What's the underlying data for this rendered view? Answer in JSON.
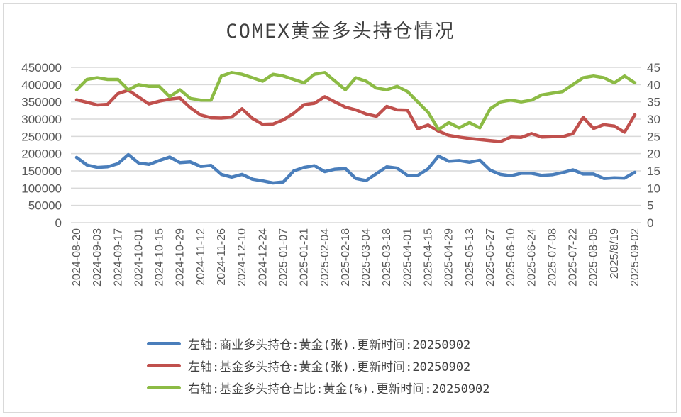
{
  "chart_data": {
    "type": "line",
    "title": "COMEX黄金多头持仓情况",
    "xlabel": "",
    "ylabel_left": "",
    "ylabel_right": "",
    "ylim_left": [
      0,
      450000
    ],
    "ylim_right": [
      0,
      45
    ],
    "yticks_left": [
      "0",
      "50000",
      "100000",
      "150000",
      "200000",
      "250000",
      "300000",
      "350000",
      "400000",
      "450000"
    ],
    "yticks_right": [
      "0",
      "5",
      "10",
      "15",
      "20",
      "25",
      "30",
      "35",
      "40",
      "45"
    ],
    "xtick_labels": [
      "2024-08-20",
      "2024-09-03",
      "2024-09-17",
      "2024-10-01",
      "2024-10-15",
      "2024-10-29",
      "2024-11-12",
      "2024-11-26",
      "2024-12-10",
      "2024-12-24",
      "2025-01-07",
      "2025-01-21",
      "2025-02-04",
      "2025-02-18",
      "2025-03-04",
      "2025-03-18",
      "2025-04-01",
      "2025-04-15",
      "2025-04-29",
      "2025-05-13",
      "2025-05-27",
      "2025-06-10",
      "2025-06-24",
      "2025-07-08",
      "2025-07-22",
      "2025-08-05",
      "2025/8/19",
      "2025-09-02"
    ],
    "grid": true,
    "legend_position": "bottom",
    "point_count": 55,
    "series": [
      {
        "name": "左轴:商业多头持仓:黄金(张).更新时间:20250902",
        "axis": "left",
        "color": "#4a7ebb",
        "values": [
          189000,
          167000,
          160000,
          162000,
          171000,
          197000,
          173000,
          169000,
          180000,
          190000,
          174000,
          176000,
          163000,
          166000,
          140000,
          132000,
          140000,
          126000,
          121000,
          115000,
          118000,
          150000,
          160000,
          165000,
          148000,
          155000,
          157000,
          128000,
          122000,
          142000,
          162000,
          158000,
          137000,
          137000,
          156000,
          193000,
          178000,
          180000,
          175000,
          181000,
          152000,
          140000,
          136000,
          143000,
          143000,
          137000,
          139000,
          145000,
          153000,
          141000,
          141000,
          128000,
          130000,
          129000,
          146000
        ]
      },
      {
        "name": "左轴:基金多头持仓:黄金(张).更新时间:20250902",
        "axis": "left",
        "color": "#c0504d",
        "values": [
          356000,
          349000,
          341000,
          343000,
          374000,
          384000,
          364000,
          344000,
          352000,
          358000,
          361000,
          333000,
          312000,
          304000,
          303000,
          306000,
          330000,
          302000,
          285000,
          286000,
          298000,
          317000,
          342000,
          346000,
          365000,
          350000,
          335000,
          327000,
          315000,
          308000,
          337000,
          327000,
          326000,
          272000,
          283000,
          265000,
          253000,
          248000,
          244000,
          241000,
          238000,
          235000,
          248000,
          247000,
          258000,
          248000,
          249000,
          249000,
          258000,
          305000,
          273000,
          284000,
          280000,
          262000,
          313000
        ]
      },
      {
        "name": "右轴:基金多头持仓占比:黄金(%).更新时间:20250902",
        "axis": "right",
        "color": "#8cbb45",
        "values": [
          38.5,
          41.5,
          42,
          41.5,
          41.5,
          38.5,
          40,
          39.5,
          39.5,
          36.5,
          38.5,
          36,
          35.5,
          35.5,
          42.5,
          43.5,
          43,
          42,
          41,
          43,
          42.5,
          41.5,
          40.5,
          43,
          43.5,
          41,
          38.5,
          42,
          41,
          39,
          38.5,
          39.5,
          38,
          35,
          32,
          27,
          29,
          27.5,
          29,
          27.5,
          33,
          35,
          35.5,
          35,
          35.5,
          37,
          37.5,
          38,
          40,
          42,
          42.5,
          42,
          40.5,
          42.5,
          40.5
        ]
      }
    ]
  },
  "legend": {
    "items": [
      {
        "label": "左轴:商业多头持仓:黄金(张).更新时间:20250902",
        "color": "#4a7ebb"
      },
      {
        "label": "左轴:基金多头持仓:黄金(张).更新时间:20250902",
        "color": "#c0504d"
      },
      {
        "label": "右轴:基金多头持仓占比:黄金(%).更新时间:20250902",
        "color": "#8cbb45"
      }
    ]
  }
}
